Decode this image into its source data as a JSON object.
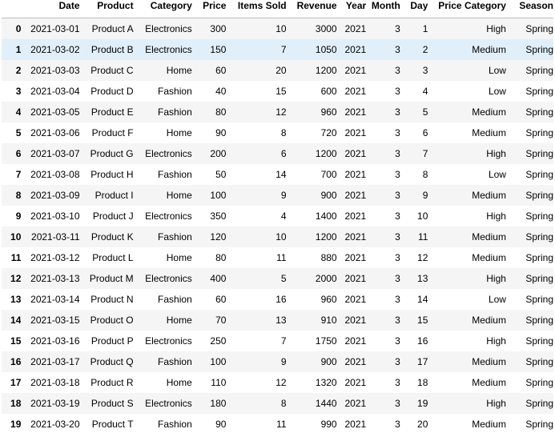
{
  "table": {
    "columns": [
      "",
      "Date",
      "Product",
      "Category",
      "Price",
      "Items Sold",
      "Revenue",
      "Year",
      "Month",
      "Day",
      "Price Category",
      "Season"
    ],
    "highlighted_row": 1,
    "rows": [
      [
        "0",
        "2021-03-01",
        "Product A",
        "Electronics",
        "300",
        "10",
        "3000",
        "2021",
        "3",
        "1",
        "High",
        "Spring"
      ],
      [
        "1",
        "2021-03-02",
        "Product B",
        "Electronics",
        "150",
        "7",
        "1050",
        "2021",
        "3",
        "2",
        "Medium",
        "Spring"
      ],
      [
        "2",
        "2021-03-03",
        "Product C",
        "Home",
        "60",
        "20",
        "1200",
        "2021",
        "3",
        "3",
        "Low",
        "Spring"
      ],
      [
        "3",
        "2021-03-04",
        "Product D",
        "Fashion",
        "40",
        "15",
        "600",
        "2021",
        "3",
        "4",
        "Low",
        "Spring"
      ],
      [
        "4",
        "2021-03-05",
        "Product E",
        "Fashion",
        "80",
        "12",
        "960",
        "2021",
        "3",
        "5",
        "Medium",
        "Spring"
      ],
      [
        "5",
        "2021-03-06",
        "Product F",
        "Home",
        "90",
        "8",
        "720",
        "2021",
        "3",
        "6",
        "Medium",
        "Spring"
      ],
      [
        "6",
        "2021-03-07",
        "Product G",
        "Electronics",
        "200",
        "6",
        "1200",
        "2021",
        "3",
        "7",
        "High",
        "Spring"
      ],
      [
        "7",
        "2021-03-08",
        "Product H",
        "Fashion",
        "50",
        "14",
        "700",
        "2021",
        "3",
        "8",
        "Low",
        "Spring"
      ],
      [
        "8",
        "2021-03-09",
        "Product I",
        "Home",
        "100",
        "9",
        "900",
        "2021",
        "3",
        "9",
        "Medium",
        "Spring"
      ],
      [
        "9",
        "2021-03-10",
        "Product J",
        "Electronics",
        "350",
        "4",
        "1400",
        "2021",
        "3",
        "10",
        "High",
        "Spring"
      ],
      [
        "10",
        "2021-03-11",
        "Product K",
        "Fashion",
        "120",
        "10",
        "1200",
        "2021",
        "3",
        "11",
        "Medium",
        "Spring"
      ],
      [
        "11",
        "2021-03-12",
        "Product L",
        "Home",
        "80",
        "11",
        "880",
        "2021",
        "3",
        "12",
        "Medium",
        "Spring"
      ],
      [
        "12",
        "2021-03-13",
        "Product M",
        "Electronics",
        "400",
        "5",
        "2000",
        "2021",
        "3",
        "13",
        "High",
        "Spring"
      ],
      [
        "13",
        "2021-03-14",
        "Product N",
        "Fashion",
        "60",
        "16",
        "960",
        "2021",
        "3",
        "14",
        "Low",
        "Spring"
      ],
      [
        "14",
        "2021-03-15",
        "Product O",
        "Home",
        "70",
        "13",
        "910",
        "2021",
        "3",
        "15",
        "Medium",
        "Spring"
      ],
      [
        "15",
        "2021-03-16",
        "Product P",
        "Electronics",
        "250",
        "7",
        "1750",
        "2021",
        "3",
        "16",
        "High",
        "Spring"
      ],
      [
        "16",
        "2021-03-17",
        "Product Q",
        "Fashion",
        "100",
        "9",
        "900",
        "2021",
        "3",
        "17",
        "Medium",
        "Spring"
      ],
      [
        "17",
        "2021-03-18",
        "Product R",
        "Home",
        "110",
        "12",
        "1320",
        "2021",
        "3",
        "18",
        "Medium",
        "Spring"
      ],
      [
        "18",
        "2021-03-19",
        "Product S",
        "Electronics",
        "180",
        "8",
        "1440",
        "2021",
        "3",
        "19",
        "High",
        "Spring"
      ],
      [
        "19",
        "2021-03-20",
        "Product T",
        "Fashion",
        "90",
        "11",
        "990",
        "2021",
        "3",
        "20",
        "Medium",
        "Spring"
      ]
    ]
  },
  "colors": {
    "stripe_odd": "#f5f5f5",
    "stripe_even": "#ffffff",
    "highlight": "#e1effa",
    "header_border": "#bdbdbd"
  }
}
